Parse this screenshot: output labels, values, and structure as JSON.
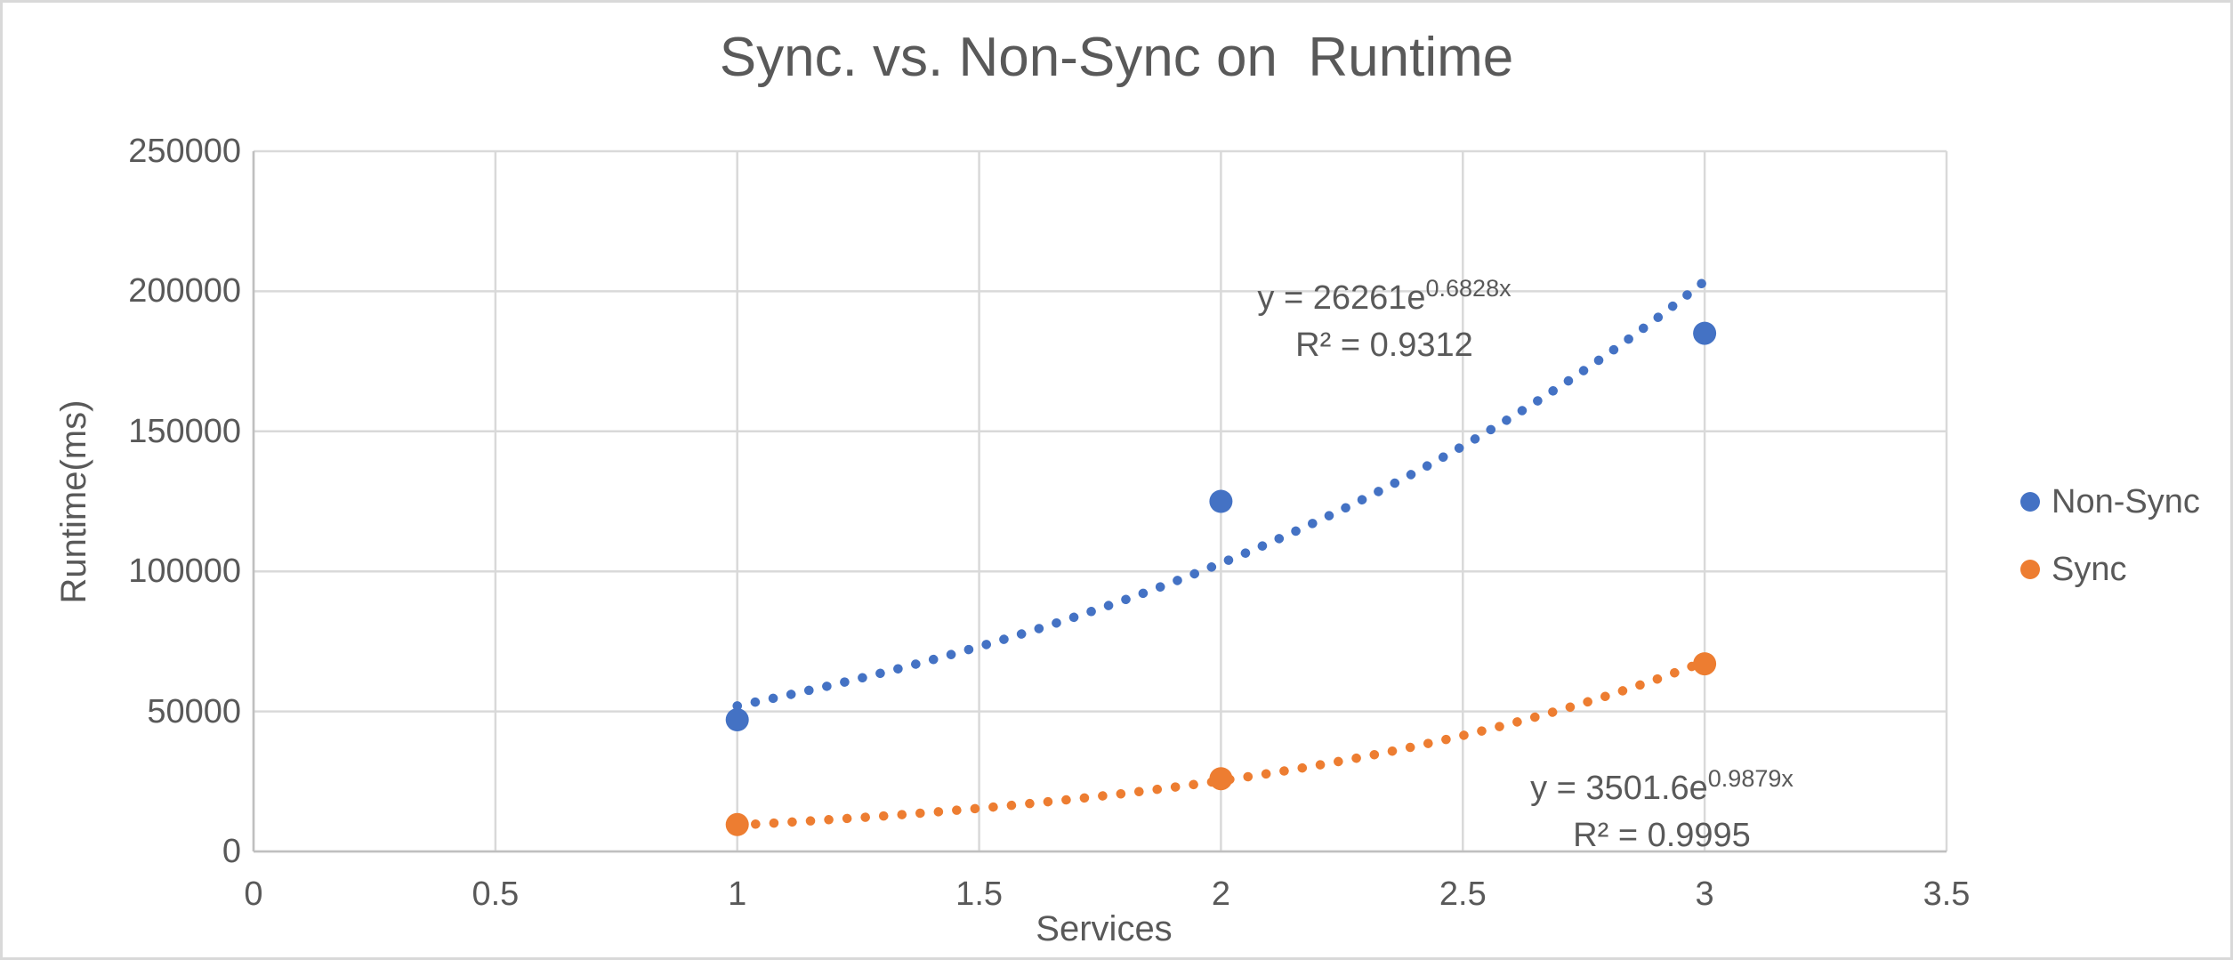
{
  "chart_data": {
    "type": "scatter",
    "title": "Sync. vs. Non-Sync on  Runtime",
    "xlabel": "Services",
    "ylabel": "Runtime(ms)",
    "xlim": [
      0,
      3.5
    ],
    "ylim": [
      0,
      250000
    ],
    "x_ticks": [
      0,
      0.5,
      1,
      1.5,
      2,
      2.5,
      3,
      3.5
    ],
    "x_tick_labels": [
      "0",
      "0.5",
      "1",
      "1.5",
      "2",
      "2.5",
      "3",
      "3.5"
    ],
    "y_ticks": [
      0,
      50000,
      100000,
      150000,
      200000,
      250000
    ],
    "y_tick_labels": [
      "0",
      "50000",
      "100000",
      "150000",
      "200000",
      "250000"
    ],
    "grid": true,
    "legend_position": "right",
    "colors": {
      "background": "#FFFFFF",
      "border": "#D9D9D9",
      "grid": "#D9D9D9",
      "axis": "#BFBFBF",
      "text": "#595959"
    },
    "series": [
      {
        "name": "Non-Sync",
        "color": "#4472C4",
        "x": [
          1,
          2,
          3
        ],
        "y": [
          47000,
          125000,
          185000
        ],
        "trendline": {
          "type": "exponential",
          "a": 26261,
          "b": 0.6828,
          "x_range": [
            1,
            3.02
          ],
          "equation_prefix": "y = 26261e",
          "equation_exponent": "0.6828x",
          "r2": "R² = 0.9312"
        }
      },
      {
        "name": "Sync",
        "color": "#ED7D31",
        "x": [
          1,
          2,
          3
        ],
        "y": [
          9600,
          26000,
          67000
        ],
        "trendline": {
          "type": "exponential",
          "a": 3501.6,
          "b": 0.9879,
          "x_range": [
            1,
            3
          ],
          "equation_prefix": "y = 3501.6e",
          "equation_exponent": "0.9879x",
          "r2": "R² = 0.9995"
        }
      }
    ]
  }
}
